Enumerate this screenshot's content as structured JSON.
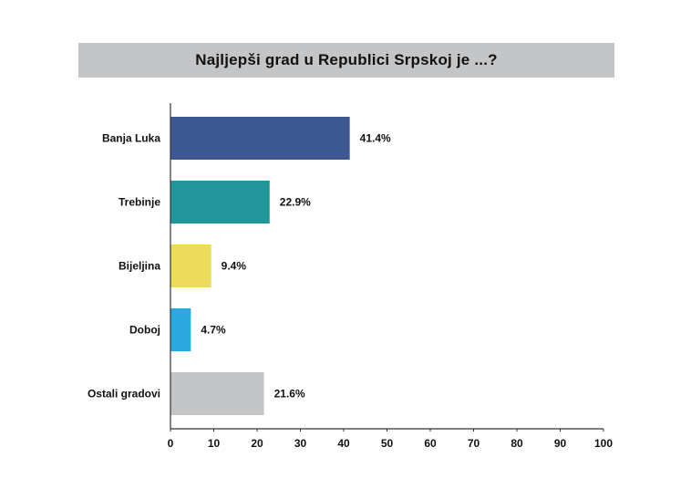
{
  "colors": {
    "title_bg": "#c4c5c7",
    "axis": "#333333",
    "text": "#111111"
  },
  "chart_data": {
    "type": "bar",
    "orientation": "horizontal",
    "title": "Najljepši grad u Republici Srpskoj je ...?",
    "categories": [
      "Banja Luka",
      "Trebinje",
      "Bijeljina",
      "Doboj",
      "Ostali gradovi"
    ],
    "values": [
      41.4,
      22.9,
      9.4,
      4.7,
      21.6
    ],
    "value_labels": [
      "41.4%",
      "22.9%",
      "9.4%",
      "4.7%",
      "21.6%"
    ],
    "bar_colors": [
      "#3d5792",
      "#20969a",
      "#ebdd5b",
      "#2aa9e0",
      "#c4c5c7"
    ],
    "xlim": [
      0,
      100
    ],
    "xticks": [
      0,
      10,
      20,
      30,
      40,
      50,
      60,
      70,
      80,
      90,
      100
    ],
    "xlabel": "",
    "ylabel": "",
    "grid": false,
    "legend": "none"
  }
}
